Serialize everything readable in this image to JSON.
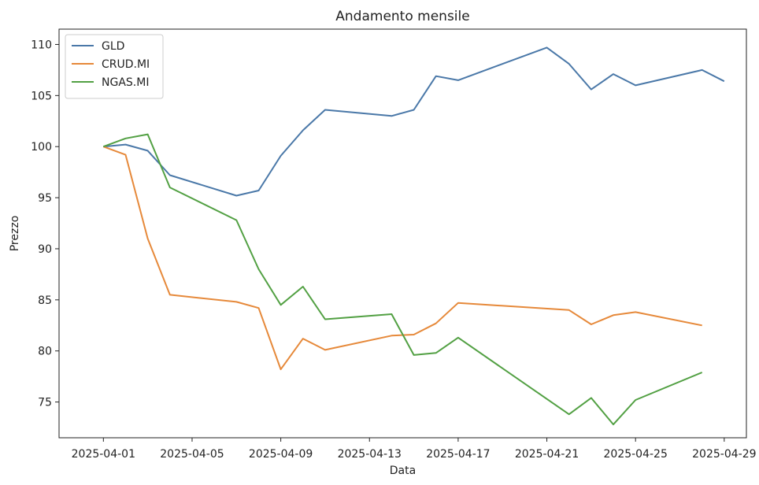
{
  "chart_data": {
    "type": "line",
    "title": "Andamento mensile",
    "xlabel": "Data",
    "ylabel": "Prezzo",
    "xlim": [
      "2025-03-30",
      "2025-04-30"
    ],
    "ylim": [
      71.5,
      111.5
    ],
    "x_ticks": [
      "2025-04-01",
      "2025-04-05",
      "2025-04-09",
      "2025-04-13",
      "2025-04-17",
      "2025-04-21",
      "2025-04-25",
      "2025-04-29"
    ],
    "y_ticks": [
      75,
      80,
      85,
      90,
      95,
      100,
      105,
      110
    ],
    "grid": false,
    "legend_position": "top-left",
    "series": [
      {
        "name": "GLD",
        "color": "#4a78a8",
        "points": [
          [
            "2025-04-01",
            100.0
          ],
          [
            "2025-04-02",
            100.2
          ],
          [
            "2025-04-03",
            99.6
          ],
          [
            "2025-04-04",
            97.2
          ],
          [
            "2025-04-07",
            95.2
          ],
          [
            "2025-04-08",
            95.7
          ],
          [
            "2025-04-09",
            99.1
          ],
          [
            "2025-04-10",
            101.6
          ],
          [
            "2025-04-11",
            103.6
          ],
          [
            "2025-04-14",
            103.0
          ],
          [
            "2025-04-15",
            103.6
          ],
          [
            "2025-04-16",
            106.9
          ],
          [
            "2025-04-17",
            106.5
          ],
          [
            "2025-04-21",
            109.7
          ],
          [
            "2025-04-22",
            108.1
          ],
          [
            "2025-04-23",
            105.6
          ],
          [
            "2025-04-24",
            107.1
          ],
          [
            "2025-04-25",
            106.0
          ],
          [
            "2025-04-28",
            107.5
          ],
          [
            "2025-04-29",
            106.4
          ]
        ]
      },
      {
        "name": "CRUD.MI",
        "color": "#e6893a",
        "points": [
          [
            "2025-04-01",
            100.0
          ],
          [
            "2025-04-02",
            99.2
          ],
          [
            "2025-04-03",
            91.0
          ],
          [
            "2025-04-04",
            85.5
          ],
          [
            "2025-04-07",
            84.8
          ],
          [
            "2025-04-08",
            84.2
          ],
          [
            "2025-04-09",
            78.2
          ],
          [
            "2025-04-10",
            81.2
          ],
          [
            "2025-04-11",
            80.1
          ],
          [
            "2025-04-14",
            81.5
          ],
          [
            "2025-04-15",
            81.6
          ],
          [
            "2025-04-16",
            82.7
          ],
          [
            "2025-04-17",
            84.7
          ],
          [
            "2025-04-22",
            84.0
          ],
          [
            "2025-04-23",
            82.6
          ],
          [
            "2025-04-24",
            83.5
          ],
          [
            "2025-04-25",
            83.8
          ],
          [
            "2025-04-28",
            82.5
          ]
        ]
      },
      {
        "name": "NGAS.MI",
        "color": "#52a043",
        "points": [
          [
            "2025-04-01",
            100.0
          ],
          [
            "2025-04-02",
            100.8
          ],
          [
            "2025-04-03",
            101.2
          ],
          [
            "2025-04-04",
            96.0
          ],
          [
            "2025-04-07",
            92.8
          ],
          [
            "2025-04-08",
            88.0
          ],
          [
            "2025-04-09",
            84.5
          ],
          [
            "2025-04-10",
            86.3
          ],
          [
            "2025-04-11",
            83.1
          ],
          [
            "2025-04-14",
            83.6
          ],
          [
            "2025-04-15",
            79.6
          ],
          [
            "2025-04-16",
            79.8
          ],
          [
            "2025-04-17",
            81.3
          ],
          [
            "2025-04-22",
            73.8
          ],
          [
            "2025-04-23",
            75.4
          ],
          [
            "2025-04-24",
            72.8
          ],
          [
            "2025-04-25",
            75.2
          ],
          [
            "2025-04-28",
            77.9
          ]
        ]
      }
    ]
  }
}
